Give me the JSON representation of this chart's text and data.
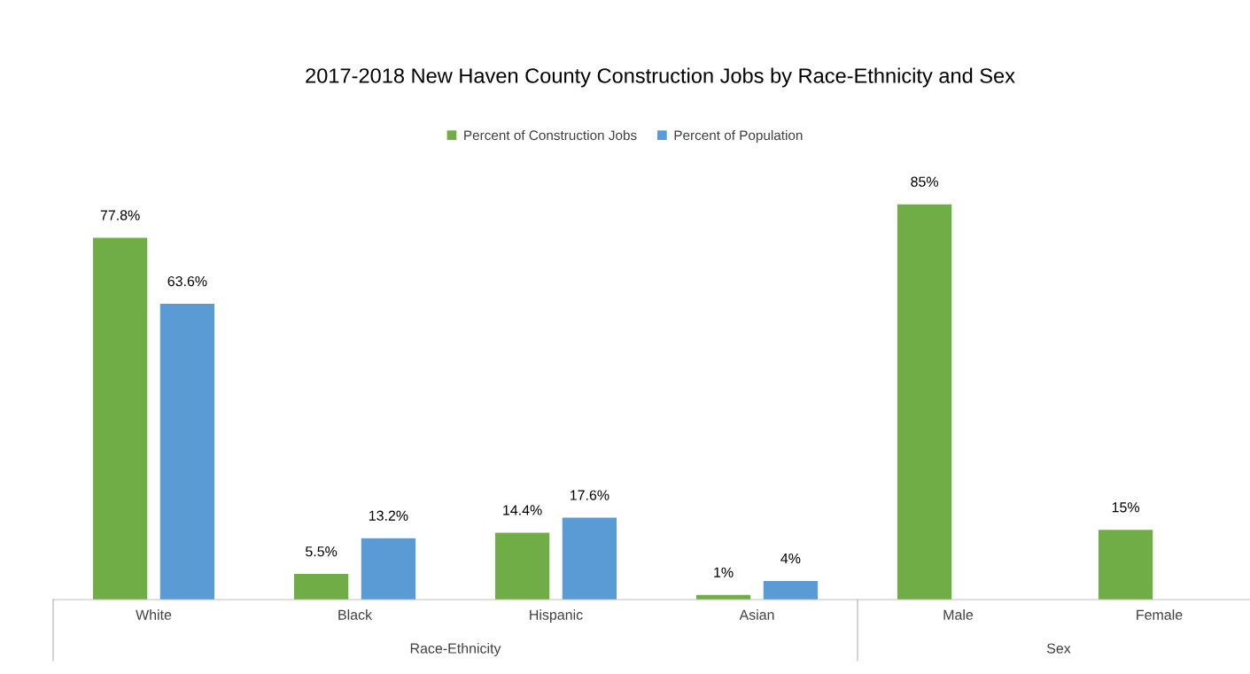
{
  "chart_data": {
    "type": "bar",
    "title": "2017-2018 New Haven County Construction Jobs by Race-Ethnicity and Sex",
    "categories": [
      "White",
      "Black",
      "Hispanic",
      "Asian",
      "Male",
      "Female"
    ],
    "series": [
      {
        "name": "Percent of Construction Jobs",
        "color": "#70ad47",
        "values": [
          77.8,
          5.5,
          14.4,
          1,
          85,
          15
        ],
        "value_labels": [
          "77.8%",
          "5.5%",
          "14.4%",
          "1%",
          "85%",
          "15%"
        ]
      },
      {
        "name": "Percent of Population",
        "color": "#5b9bd5",
        "values": [
          63.6,
          13.2,
          17.6,
          4,
          null,
          null
        ],
        "value_labels": [
          "63.6%",
          "13.2%",
          "17.6%",
          "4%",
          null,
          null
        ]
      }
    ],
    "annotations": [
      "Race-Ethnicity",
      "Sex"
    ],
    "legend": "top"
  }
}
